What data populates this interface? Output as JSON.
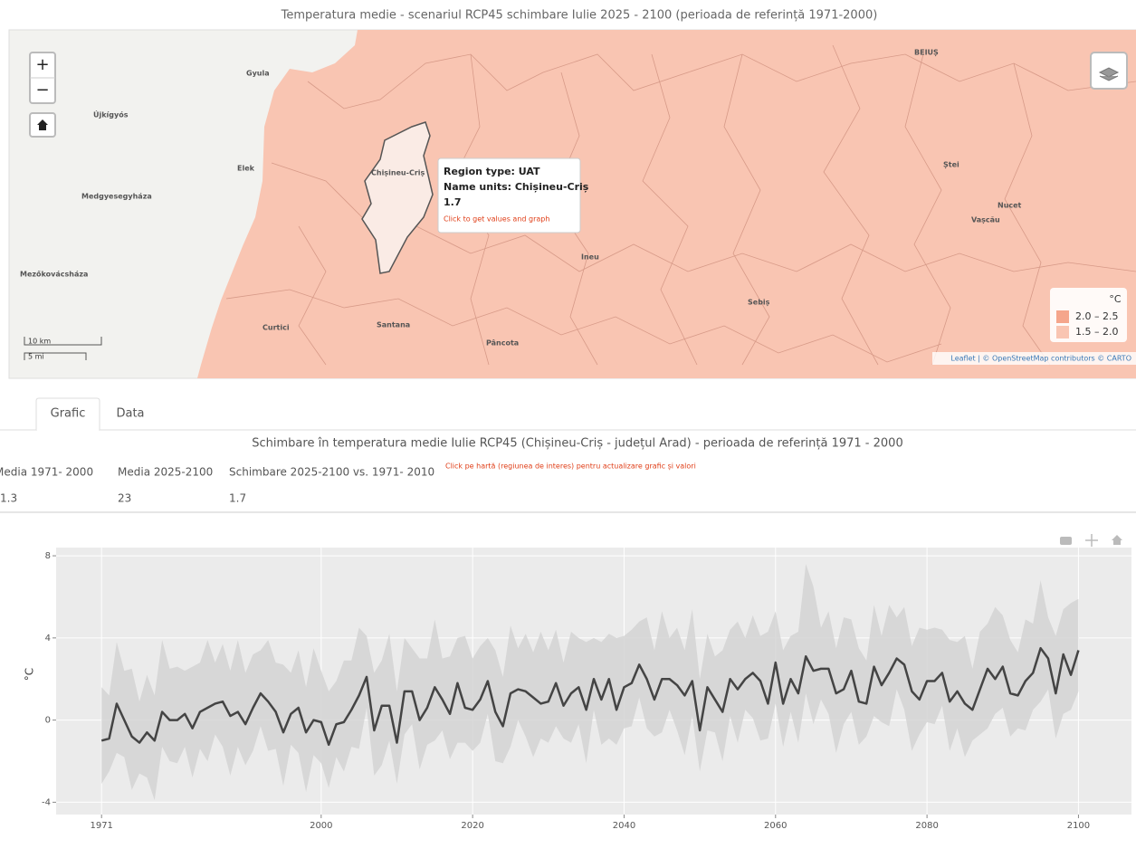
{
  "map": {
    "title": "Temperatura medie - scenariul RCP45 schimbare Iulie 2025 - 2100 (perioada de referință 1971-2000)",
    "zoom_in": "+",
    "zoom_out": "−",
    "places": [
      "BEIUȘ",
      "Gyula",
      "Újkígyós",
      "Elek",
      "Chișineu-Criș",
      "Medgyesegyháza",
      "Mezőkovácsháza",
      "Curtici",
      "Santana",
      "Pâncota",
      "Ineu",
      "Sebiș",
      "Ștei",
      "Nucet",
      "Vașcău"
    ],
    "tooltip": {
      "region_type": "Region type: UAT",
      "name": "Name units: Chișineu-Criș",
      "value": "1.7",
      "hint": "Click to get values and graph"
    },
    "legend": {
      "title": "°C",
      "items": [
        {
          "label": "2.0 – 2.5",
          "color": "#f5a68c"
        },
        {
          "label": "1.5 – 2.0",
          "color": "#f9c5b2"
        }
      ]
    },
    "scale": [
      "10 km",
      "5 mi"
    ],
    "attribution": "Leaflet | © OpenStreetMap contributors © CARTO"
  },
  "tabs": [
    "Grafic",
    "Data"
  ],
  "stats": {
    "title": "Schimbare în temperatura medie Iulie RCP45 (Chișineu-Criș - județul Arad) - perioada de referință 1971 - 2000",
    "headers": [
      "Media 1971- 2000",
      "Media 2025-2100",
      "Schimbare 2025-2100 vs. 1971- 2010"
    ],
    "values": [
      "1.3",
      "23",
      "1.7"
    ],
    "note": "Click pe hartă (regiunea de interes) pentru actualizare grafic și valori"
  },
  "chart_data": {
    "type": "line",
    "y_label": "°C",
    "x": [
      1971,
      1972,
      1973,
      1974,
      1975,
      1976,
      1977,
      1978,
      1979,
      1980,
      1981,
      1982,
      1983,
      1984,
      1985,
      1986,
      1987,
      1988,
      1989,
      1990,
      1991,
      1992,
      1993,
      1994,
      1995,
      1996,
      1997,
      1998,
      1999,
      2000,
      2001,
      2002,
      2003,
      2004,
      2005,
      2006,
      2007,
      2008,
      2009,
      2010,
      2011,
      2012,
      2013,
      2014,
      2015,
      2016,
      2017,
      2018,
      2019,
      2020,
      2021,
      2022,
      2023,
      2024,
      2025,
      2026,
      2027,
      2028,
      2029,
      2030,
      2031,
      2032,
      2033,
      2034,
      2035,
      2036,
      2037,
      2038,
      2039,
      2040,
      2041,
      2042,
      2043,
      2044,
      2045,
      2046,
      2047,
      2048,
      2049,
      2050,
      2051,
      2052,
      2053,
      2054,
      2055,
      2056,
      2057,
      2058,
      2059,
      2060,
      2061,
      2062,
      2063,
      2064,
      2065,
      2066,
      2067,
      2068,
      2069,
      2070,
      2071,
      2072,
      2073,
      2074,
      2075,
      2076,
      2077,
      2078,
      2079,
      2080,
      2081,
      2082,
      2083,
      2084,
      2085,
      2086,
      2087,
      2088,
      2089,
      2090,
      2091,
      2092,
      2093,
      2094,
      2095,
      2096,
      2097,
      2098,
      2099,
      2100
    ],
    "values": [
      -1.0,
      -0.9,
      0.8,
      0.0,
      -0.8,
      -1.1,
      -0.6,
      -1.0,
      0.4,
      0.0,
      0.0,
      0.3,
      -0.4,
      0.4,
      0.6,
      0.8,
      0.9,
      0.2,
      0.4,
      -0.2,
      0.6,
      1.3,
      0.9,
      0.4,
      -0.6,
      0.3,
      0.6,
      -0.6,
      0.0,
      -0.1,
      -1.2,
      -0.2,
      -0.1,
      0.5,
      1.2,
      2.1,
      -0.5,
      0.7,
      0.7,
      -1.1,
      1.4,
      1.4,
      0.0,
      0.6,
      1.6,
      1.0,
      0.3,
      1.8,
      0.6,
      0.5,
      1.0,
      1.9,
      0.4,
      -0.3,
      1.3,
      1.5,
      1.4,
      1.1,
      0.8,
      0.9,
      1.8,
      0.7,
      1.3,
      1.6,
      0.5,
      2.0,
      1.0,
      2.0,
      0.5,
      1.6,
      1.8,
      2.7,
      2.0,
      1.0,
      2.0,
      2.0,
      1.7,
      1.2,
      1.9,
      -0.5,
      1.6,
      1.0,
      0.4,
      2.0,
      1.5,
      2.0,
      2.3,
      1.9,
      0.8,
      2.8,
      0.8,
      2.0,
      1.3,
      3.1,
      2.4,
      2.5,
      2.5,
      1.3,
      1.5,
      2.4,
      0.9,
      0.8,
      2.6,
      1.7,
      2.3,
      3.0,
      2.7,
      1.4,
      1.0,
      1.9,
      1.9,
      2.3,
      0.9,
      1.4,
      0.8,
      0.5,
      1.5,
      2.5,
      2.0,
      2.6,
      1.3,
      1.2,
      1.9,
      2.3,
      3.5,
      3.0,
      1.3,
      3.2,
      2.2,
      3.4
    ],
    "color": "#444444",
    "band": {
      "color": "#d3d3d3",
      "lower": [
        -3.1,
        -2.5,
        -1.6,
        -1.8,
        -3.4,
        -2.6,
        -2.8,
        -3.9,
        -1.3,
        -2.0,
        -2.1,
        -1.3,
        -2.8,
        -1.4,
        -2.0,
        -0.7,
        -1.3,
        -2.7,
        -1.3,
        -2.2,
        -1.5,
        -0.3,
        -1.5,
        -1.4,
        -3.2,
        -1.2,
        -1.6,
        -3.5,
        -1.7,
        -2.1,
        -3.3,
        -1.8,
        -2.5,
        -1.3,
        -1.4,
        0.6,
        -2.7,
        -2.2,
        -1.0,
        -3.1,
        -0.7,
        -0.2,
        -2.4,
        -1.2,
        -1.0,
        -0.5,
        -1.9,
        -1.1,
        -1.1,
        -1.5,
        -1.1,
        0.3,
        -2.0,
        -2.1,
        -1.3,
        0.0,
        -0.8,
        -1.8,
        -0.9,
        -1.1,
        -0.3,
        -0.9,
        -1.1,
        -0.2,
        -2.1,
        0.5,
        -1.2,
        -0.9,
        -1.2,
        -0.4,
        -0.3,
        1.1,
        -0.4,
        -0.8,
        -0.6,
        0.5,
        -0.5,
        -1.7,
        0.2,
        -2.5,
        -0.5,
        -0.6,
        -2.0,
        0.2,
        -1.1,
        0.5,
        0.1,
        -1.0,
        -0.9,
        0.8,
        -1.3,
        0.4,
        -1.1,
        1.3,
        -0.2,
        1.0,
        0.3,
        -1.6,
        -0.2,
        0.4,
        -1.2,
        -0.8,
        0.2,
        -0.1,
        -0.3,
        1.5,
        0.5,
        -1.5,
        -0.7,
        -0.1,
        -0.2,
        0.7,
        -1.5,
        -0.4,
        -1.8,
        -1.0,
        -0.7,
        -0.4,
        0.3,
        0.6,
        -0.8,
        -0.4,
        -0.5,
        0.5,
        0.9,
        1.5,
        -0.9,
        0.3,
        0.5,
        1.4
      ],
      "upper": [
        1.6,
        1.2,
        3.8,
        2.4,
        2.5,
        0.9,
        2.2,
        1.2,
        3.9,
        2.5,
        2.6,
        2.4,
        2.6,
        2.8,
        3.9,
        2.8,
        3.7,
        2.4,
        3.9,
        2.3,
        3.2,
        3.4,
        3.9,
        2.8,
        2.7,
        2.3,
        3.4,
        1.6,
        3.5,
        2.4,
        1.4,
        1.9,
        2.9,
        2.9,
        4.5,
        4.1,
        2.3,
        2.9,
        4.2,
        1.4,
        4.0,
        3.5,
        3.0,
        3.0,
        4.9,
        3.0,
        3.1,
        4.0,
        4.1,
        3.0,
        3.6,
        4.0,
        3.4,
        2.1,
        4.6,
        3.5,
        4.2,
        3.3,
        4.3,
        3.4,
        4.4,
        2.8,
        4.3,
        4.0,
        3.8,
        4.0,
        3.8,
        4.2,
        4.0,
        4.1,
        4.4,
        4.8,
        5.0,
        3.4,
        5.3,
        4.0,
        4.5,
        3.4,
        5.4,
        2.0,
        4.2,
        3.1,
        3.4,
        4.4,
        4.8,
        4.0,
        5.1,
        4.1,
        4.3,
        5.3,
        3.4,
        4.1,
        4.3,
        7.6,
        6.5,
        4.5,
        5.3,
        3.5,
        5.0,
        4.9,
        3.5,
        2.9,
        5.6,
        4.1,
        5.6,
        5.0,
        5.5,
        3.6,
        4.5,
        4.4,
        4.5,
        4.4,
        3.9,
        3.8,
        4.1,
        2.5,
        4.3,
        4.7,
        5.5,
        5.1,
        3.9,
        3.3,
        4.9,
        4.7,
        6.8,
        5.0,
        4.1,
        5.4,
        5.7,
        5.9
      ]
    },
    "xlim": [
      1965,
      2107
    ],
    "ylim": [
      -4.6,
      8.4
    ],
    "xticks": [
      1971,
      2000,
      2020,
      2040,
      2060,
      2080,
      2100
    ],
    "yticks": [
      -4,
      0,
      4,
      8
    ],
    "grid": true
  }
}
